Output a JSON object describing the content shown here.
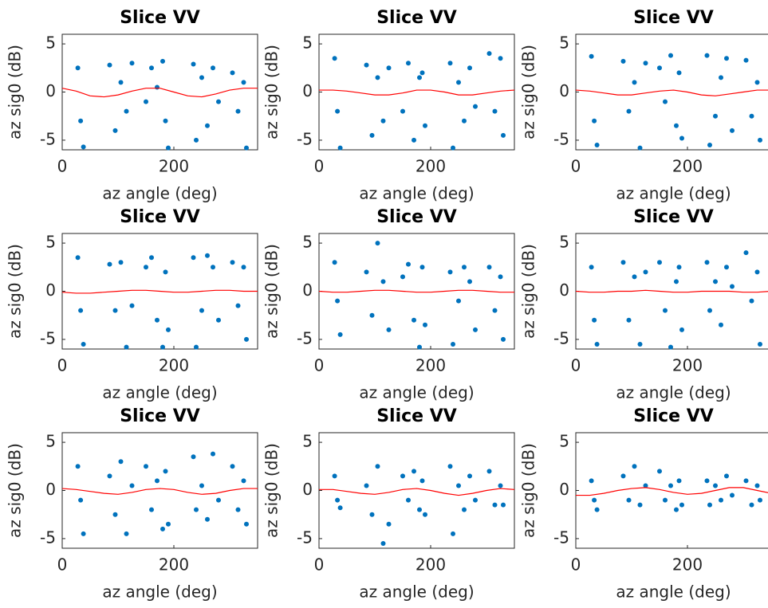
{
  "chart_data": [
    {
      "type": "scatter",
      "title": "Slice VV",
      "xlabel": "az angle (deg)",
      "ylabel": "az sig0 (dB)",
      "xlim": [
        0,
        350
      ],
      "ylim": [
        -6,
        6
      ],
      "xticks": [
        0,
        200
      ],
      "yticks": [
        -5,
        0,
        5
      ],
      "series": [
        {
          "type": "scatter",
          "color": "#0072bd",
          "x": [
            28,
            33,
            38,
            85,
            95,
            105,
            115,
            125,
            150,
            160,
            170,
            180,
            185,
            190,
            235,
            240,
            250,
            260,
            270,
            280,
            305,
            315,
            325,
            330
          ],
          "values": [
            2.5,
            -3,
            -5.7,
            2.8,
            -4,
            1,
            -2,
            3,
            -1,
            2.5,
            0.5,
            3.2,
            -3,
            -5.8,
            2.9,
            -5,
            1.5,
            -3.5,
            2.5,
            -1,
            2,
            -2,
            1,
            -5.8
          ]
        },
        {
          "type": "line",
          "color": "#ff0000",
          "x": [
            0,
            25,
            50,
            75,
            100,
            125,
            150,
            175,
            200,
            225,
            250,
            275,
            300,
            325,
            350
          ],
          "values": [
            0.4,
            0.1,
            -0.4,
            -0.5,
            -0.3,
            0.1,
            0.4,
            0.4,
            0.0,
            -0.4,
            -0.5,
            -0.2,
            0.2,
            0.4,
            0.4
          ]
        }
      ]
    },
    {
      "type": "scatter",
      "title": "Slice VV",
      "xlabel": "az angle (deg)",
      "ylabel": "az sig0 (dB)",
      "xlim": [
        0,
        350
      ],
      "ylim": [
        -6,
        6
      ],
      "xticks": [
        0,
        200
      ],
      "yticks": [
        -5,
        0,
        5
      ],
      "series": [
        {
          "type": "scatter",
          "color": "#0072bd",
          "x": [
            28,
            33,
            38,
            85,
            95,
            105,
            115,
            125,
            150,
            160,
            170,
            180,
            185,
            190,
            235,
            240,
            250,
            260,
            270,
            280,
            305,
            315,
            325,
            330
          ],
          "values": [
            3.5,
            -2,
            -5.8,
            2.8,
            -4.5,
            1.5,
            -3,
            2.5,
            -2,
            3,
            -5,
            1.5,
            2,
            -3.5,
            3,
            -5.8,
            1,
            -3,
            2.5,
            -1.5,
            4,
            -2,
            3.5,
            -4.5
          ]
        },
        {
          "type": "line",
          "color": "#ff0000",
          "x": [
            0,
            25,
            50,
            75,
            100,
            125,
            150,
            175,
            200,
            225,
            250,
            275,
            300,
            325,
            350
          ],
          "values": [
            0.2,
            0.2,
            0.1,
            -0.1,
            -0.3,
            -0.3,
            -0.1,
            0.2,
            0.2,
            0.0,
            -0.3,
            -0.3,
            -0.1,
            0.1,
            0.2
          ]
        }
      ]
    },
    {
      "type": "scatter",
      "title": "Slice VV",
      "xlabel": "az angle (deg)",
      "ylabel": "az sig0 (dB)",
      "xlim": [
        0,
        350
      ],
      "ylim": [
        -6,
        6
      ],
      "xticks": [
        0,
        200
      ],
      "yticks": [
        -5,
        0,
        5
      ],
      "series": [
        {
          "type": "scatter",
          "color": "#0072bd",
          "x": [
            28,
            33,
            38,
            85,
            95,
            105,
            115,
            125,
            150,
            160,
            170,
            180,
            185,
            190,
            235,
            240,
            250,
            260,
            270,
            280,
            305,
            315,
            325,
            330
          ],
          "values": [
            3.7,
            -3,
            -5.5,
            3.2,
            -2,
            1,
            -5.8,
            3,
            2.5,
            -1,
            3.8,
            -3.5,
            2,
            -4.8,
            3.8,
            -5.5,
            -2.5,
            1.5,
            3.5,
            -4,
            3.3,
            -2.5,
            1,
            -5
          ]
        },
        {
          "type": "line",
          "color": "#ff0000",
          "x": [
            0,
            25,
            50,
            75,
            100,
            125,
            150,
            175,
            200,
            225,
            250,
            275,
            300,
            325,
            350
          ],
          "values": [
            0.2,
            0.1,
            -0.1,
            -0.3,
            -0.3,
            -0.1,
            0.1,
            0.2,
            0.0,
            -0.3,
            -0.4,
            -0.2,
            0.0,
            0.2,
            0.2
          ]
        }
      ]
    },
    {
      "type": "scatter",
      "title": "Slice VV",
      "xlabel": "az angle (deg)",
      "ylabel": "az sig0 (dB)",
      "xlim": [
        0,
        350
      ],
      "ylim": [
        -6,
        6
      ],
      "xticks": [
        0,
        200
      ],
      "yticks": [
        -5,
        0,
        5
      ],
      "series": [
        {
          "type": "scatter",
          "color": "#0072bd",
          "x": [
            28,
            33,
            38,
            85,
            95,
            105,
            115,
            125,
            150,
            160,
            170,
            180,
            185,
            190,
            235,
            240,
            250,
            260,
            270,
            280,
            305,
            315,
            325,
            330
          ],
          "values": [
            3.5,
            -2,
            -5.5,
            2.8,
            -2,
            3,
            -5.8,
            -1.5,
            2.5,
            3.5,
            -3,
            -5.8,
            2,
            -4,
            3.5,
            -5.8,
            -2,
            3.7,
            2.5,
            -3,
            3,
            -1.5,
            2.5,
            -5
          ]
        },
        {
          "type": "line",
          "color": "#ff0000",
          "x": [
            0,
            25,
            50,
            75,
            100,
            125,
            150,
            175,
            200,
            225,
            250,
            275,
            300,
            325,
            350
          ],
          "values": [
            -0.1,
            -0.2,
            -0.2,
            -0.1,
            0.0,
            0.1,
            0.1,
            0.0,
            -0.1,
            -0.1,
            0.0,
            0.1,
            0.1,
            0.0,
            0.0
          ]
        }
      ]
    },
    {
      "type": "scatter",
      "title": "Slice VV",
      "xlabel": "az angle (deg)",
      "ylabel": "az sig0 (dB)",
      "xlim": [
        0,
        350
      ],
      "ylim": [
        -6,
        6
      ],
      "xticks": [
        0,
        200
      ],
      "yticks": [
        -5,
        0,
        5
      ],
      "series": [
        {
          "type": "scatter",
          "color": "#0072bd",
          "x": [
            28,
            33,
            38,
            85,
            95,
            105,
            115,
            125,
            150,
            160,
            170,
            180,
            185,
            190,
            235,
            240,
            250,
            260,
            270,
            280,
            305,
            315,
            325,
            330
          ],
          "values": [
            3,
            -1,
            -4.5,
            2,
            -2.5,
            5,
            1,
            -4,
            1.5,
            2.8,
            -3,
            -5.8,
            2.5,
            -3.5,
            2,
            -5.5,
            -1,
            2.5,
            1,
            -4,
            2.5,
            -2,
            1.5,
            -5
          ]
        },
        {
          "type": "line",
          "color": "#ff0000",
          "x": [
            0,
            25,
            50,
            75,
            100,
            125,
            150,
            175,
            200,
            225,
            250,
            275,
            300,
            325,
            350
          ],
          "values": [
            0.0,
            -0.1,
            -0.1,
            0.0,
            0.1,
            0.1,
            0.0,
            -0.1,
            -0.1,
            0.0,
            0.1,
            0.1,
            0.0,
            -0.1,
            -0.1
          ]
        }
      ]
    },
    {
      "type": "scatter",
      "title": "Slice VV",
      "xlabel": "az angle (deg)",
      "ylabel": "az sig0 (dB)",
      "xlim": [
        0,
        350
      ],
      "ylim": [
        -6,
        6
      ],
      "xticks": [
        0,
        200
      ],
      "yticks": [
        -5,
        0,
        5
      ],
      "series": [
        {
          "type": "scatter",
          "color": "#0072bd",
          "x": [
            28,
            33,
            38,
            85,
            95,
            105,
            115,
            125,
            150,
            160,
            170,
            180,
            185,
            190,
            235,
            240,
            250,
            260,
            270,
            280,
            305,
            315,
            325,
            330
          ],
          "values": [
            2.5,
            -3,
            -5.5,
            3,
            -3,
            1.5,
            -5.5,
            2,
            3,
            -2,
            -5.8,
            1,
            2.5,
            -4,
            3,
            -2,
            1,
            -3.5,
            2.5,
            0.5,
            4,
            -1,
            2,
            -5.5
          ]
        },
        {
          "type": "line",
          "color": "#ff0000",
          "x": [
            0,
            25,
            50,
            75,
            100,
            125,
            150,
            175,
            200,
            225,
            250,
            275,
            300,
            325,
            350
          ],
          "values": [
            0.0,
            -0.1,
            -0.1,
            0.0,
            0.0,
            0.1,
            0.0,
            -0.1,
            -0.1,
            0.0,
            0.0,
            0.0,
            -0.1,
            -0.1,
            0.0
          ]
        }
      ]
    },
    {
      "type": "scatter",
      "title": "Slice VV",
      "xlabel": "az angle (deg)",
      "ylabel": "az sig0 (dB)",
      "xlim": [
        0,
        350
      ],
      "ylim": [
        -6,
        6
      ],
      "xticks": [
        0,
        200
      ],
      "yticks": [
        -5,
        0,
        5
      ],
      "series": [
        {
          "type": "scatter",
          "color": "#0072bd",
          "x": [
            28,
            33,
            38,
            85,
            95,
            105,
            115,
            125,
            150,
            160,
            170,
            180,
            185,
            190,
            235,
            240,
            250,
            260,
            270,
            280,
            305,
            315,
            325,
            330
          ],
          "values": [
            2.5,
            -1,
            -4.5,
            1.5,
            -2.5,
            3,
            -4.5,
            0.5,
            2.5,
            -2,
            1,
            -4,
            2,
            -3.5,
            3.5,
            -2,
            0.5,
            -3,
            3.8,
            -1,
            2.5,
            -2,
            1,
            -3.5
          ]
        },
        {
          "type": "line",
          "color": "#ff0000",
          "x": [
            0,
            25,
            50,
            75,
            100,
            125,
            150,
            175,
            200,
            225,
            250,
            275,
            300,
            325,
            350
          ],
          "values": [
            0.2,
            0.1,
            -0.1,
            -0.3,
            -0.4,
            -0.2,
            0.1,
            0.2,
            0.1,
            -0.2,
            -0.4,
            -0.3,
            0.0,
            0.2,
            0.2
          ]
        }
      ]
    },
    {
      "type": "scatter",
      "title": "Slice VV",
      "xlabel": "az angle (deg)",
      "ylabel": "az sig0 (dB)",
      "xlim": [
        0,
        350
      ],
      "ylim": [
        -6,
        6
      ],
      "xticks": [
        0,
        200
      ],
      "yticks": [
        -5,
        0,
        5
      ],
      "series": [
        {
          "type": "scatter",
          "color": "#0072bd",
          "x": [
            28,
            33,
            38,
            85,
            95,
            105,
            115,
            125,
            150,
            160,
            170,
            180,
            185,
            190,
            235,
            240,
            250,
            260,
            270,
            280,
            305,
            315,
            325,
            330
          ],
          "values": [
            1.5,
            -1,
            -1.8,
            0.5,
            -2.5,
            2.5,
            -5.5,
            -3.5,
            1.5,
            -1,
            2,
            -2,
            1,
            -2.5,
            2.5,
            -4.5,
            0.5,
            -2,
            1.5,
            -1,
            2,
            -1.5,
            0.5,
            -1.5
          ]
        },
        {
          "type": "line",
          "color": "#ff0000",
          "x": [
            0,
            25,
            50,
            75,
            100,
            125,
            150,
            175,
            200,
            225,
            250,
            275,
            300,
            325,
            350
          ],
          "values": [
            0.1,
            0.1,
            -0.1,
            -0.3,
            -0.4,
            -0.2,
            0.1,
            0.2,
            0.0,
            -0.3,
            -0.5,
            -0.3,
            0.0,
            0.2,
            0.1
          ]
        }
      ]
    },
    {
      "type": "scatter",
      "title": "Slice VV",
      "xlabel": "az angle (deg)",
      "ylabel": "az sig0 (dB)",
      "xlim": [
        0,
        350
      ],
      "ylim": [
        -6,
        6
      ],
      "xticks": [
        0,
        200
      ],
      "yticks": [
        -5,
        0,
        5
      ],
      "series": [
        {
          "type": "scatter",
          "color": "#0072bd",
          "x": [
            28,
            33,
            38,
            85,
            95,
            105,
            115,
            125,
            150,
            160,
            170,
            180,
            185,
            190,
            235,
            240,
            250,
            260,
            270,
            280,
            305,
            315,
            325,
            330
          ],
          "values": [
            1,
            -1,
            -2,
            1.5,
            -1,
            2.5,
            -1.5,
            0.5,
            2,
            -1,
            0.5,
            -2,
            1,
            -1.5,
            1,
            -1.5,
            0.5,
            -1,
            1.5,
            -0.5,
            1,
            -1.5,
            0.5,
            -1
          ]
        },
        {
          "type": "line",
          "color": "#ff0000",
          "x": [
            0,
            25,
            50,
            75,
            100,
            125,
            150,
            175,
            200,
            225,
            250,
            275,
            300,
            325,
            350
          ],
          "values": [
            -0.5,
            -0.5,
            -0.3,
            0.0,
            0.2,
            0.3,
            0.1,
            -0.2,
            -0.4,
            -0.3,
            0.0,
            0.3,
            0.3,
            0.0,
            -0.3
          ]
        }
      ]
    }
  ]
}
